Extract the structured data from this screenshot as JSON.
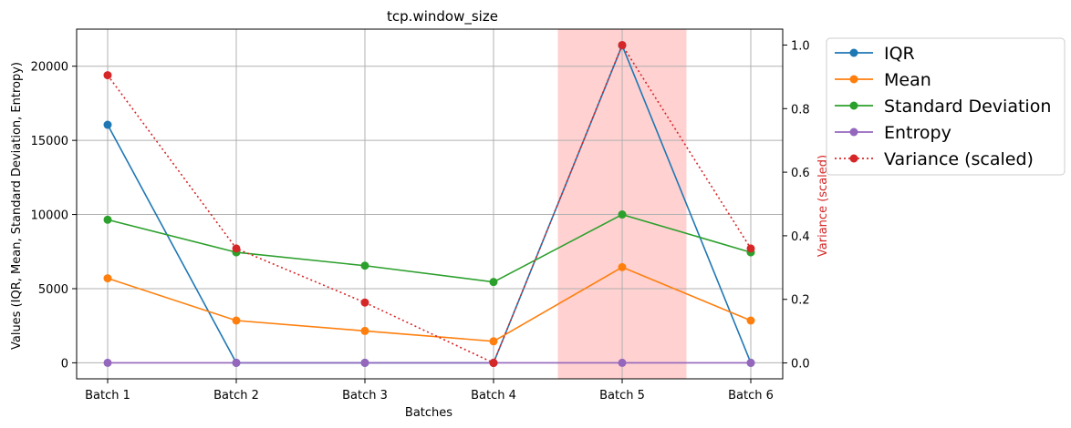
{
  "chart_data": {
    "type": "line",
    "title": "tcp.window_size",
    "xlabel": "Batches",
    "ylabel": "Values (IQR, Mean, Standard Deviation, Entropy)",
    "y2label": "Variance (scaled)",
    "categories": [
      "Batch 1",
      "Batch 2",
      "Batch 3",
      "Batch 4",
      "Batch 5",
      "Batch 6"
    ],
    "ylim": [
      -1080,
      22500
    ],
    "y2lim": [
      -0.05,
      1.05
    ],
    "yticks": [
      0,
      5000,
      10000,
      15000,
      20000
    ],
    "y2ticks": [
      0.0,
      0.2,
      0.4,
      0.6,
      0.8,
      1.0
    ],
    "y2tick_labels": [
      "0.0",
      "0.2",
      "0.4",
      "0.6",
      "0.8",
      "1.0"
    ],
    "grid": true,
    "highlight": {
      "category": "Batch 5",
      "color": "#ffcccc"
    },
    "series": [
      {
        "name": "IQR",
        "color": "#1f77b4",
        "style": "solid",
        "axis": "left",
        "values": [
          16050,
          0,
          0,
          0,
          21400,
          0
        ]
      },
      {
        "name": "Mean",
        "color": "#ff7f0e",
        "style": "solid",
        "axis": "left",
        "values": [
          5700,
          2850,
          2150,
          1450,
          6450,
          2850
        ]
      },
      {
        "name": "Standard Deviation",
        "color": "#2ca02c",
        "style": "solid",
        "axis": "left",
        "values": [
          9650,
          7450,
          6550,
          5450,
          10000,
          7450
        ]
      },
      {
        "name": "Entropy",
        "color": "#9467bd",
        "style": "solid",
        "axis": "left",
        "values": [
          0,
          0,
          0,
          0,
          0,
          0
        ]
      },
      {
        "name": "Variance (scaled)",
        "color": "#d62728",
        "style": "dotted",
        "axis": "right",
        "values": [
          0.905,
          0.36,
          0.19,
          0.0,
          1.0,
          0.36
        ]
      }
    ],
    "legend_position": "outside-right"
  }
}
